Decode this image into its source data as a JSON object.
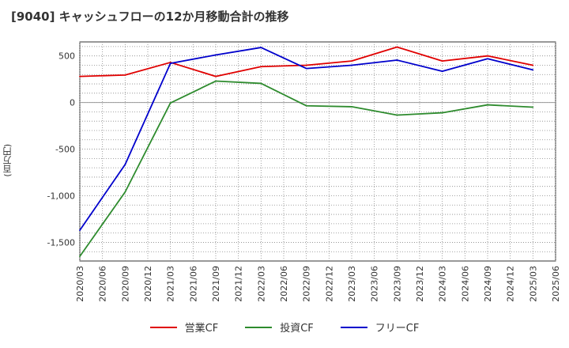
{
  "chart_data": {
    "type": "line",
    "title": "[9040]  キャッシュフローの12か月移動合計の推移",
    "ylabel": "(百万円)",
    "xlabel": "",
    "ylim": [
      -1700,
      650
    ],
    "yticks": [
      500,
      0,
      -500,
      -1000,
      -1500
    ],
    "ytick_labels": [
      "500",
      "0",
      "-500",
      "-1,000",
      "-1,500"
    ],
    "x_ticks": [
      "2020/03",
      "2020/06",
      "2020/09",
      "2020/12",
      "2021/03",
      "2021/06",
      "2021/09",
      "2021/12",
      "2022/03",
      "2022/06",
      "2022/09",
      "2022/12",
      "2023/03",
      "2023/06",
      "2023/09",
      "2023/12",
      "2024/03",
      "2024/06",
      "2024/09",
      "2024/12",
      "2025/03",
      "2025/06"
    ],
    "grid": true,
    "legend_position": "bottom",
    "series": [
      {
        "name": "営業CF",
        "color": "#e00000",
        "points": [
          [
            0,
            280
          ],
          [
            2,
            295
          ],
          [
            4,
            430
          ],
          [
            6,
            280
          ],
          [
            8,
            385
          ],
          [
            10,
            400
          ],
          [
            12,
            445
          ],
          [
            14,
            595
          ],
          [
            16,
            445
          ],
          [
            18,
            500
          ],
          [
            20,
            400
          ]
        ]
      },
      {
        "name": "投資CF",
        "color": "#2e8b2e",
        "points": [
          [
            0,
            -1650
          ],
          [
            2,
            -960
          ],
          [
            4,
            -5
          ],
          [
            6,
            230
          ],
          [
            8,
            205
          ],
          [
            10,
            -35
          ],
          [
            12,
            -45
          ],
          [
            14,
            -135
          ],
          [
            16,
            -110
          ],
          [
            18,
            -25
          ],
          [
            20,
            -50
          ]
        ]
      },
      {
        "name": "フリーCF",
        "color": "#0000cc",
        "points": [
          [
            0,
            -1370
          ],
          [
            2,
            -665
          ],
          [
            4,
            420
          ],
          [
            6,
            510
          ],
          [
            8,
            590
          ],
          [
            10,
            365
          ],
          [
            12,
            400
          ],
          [
            14,
            455
          ],
          [
            16,
            335
          ],
          [
            18,
            470
          ],
          [
            20,
            350
          ]
        ]
      }
    ]
  }
}
